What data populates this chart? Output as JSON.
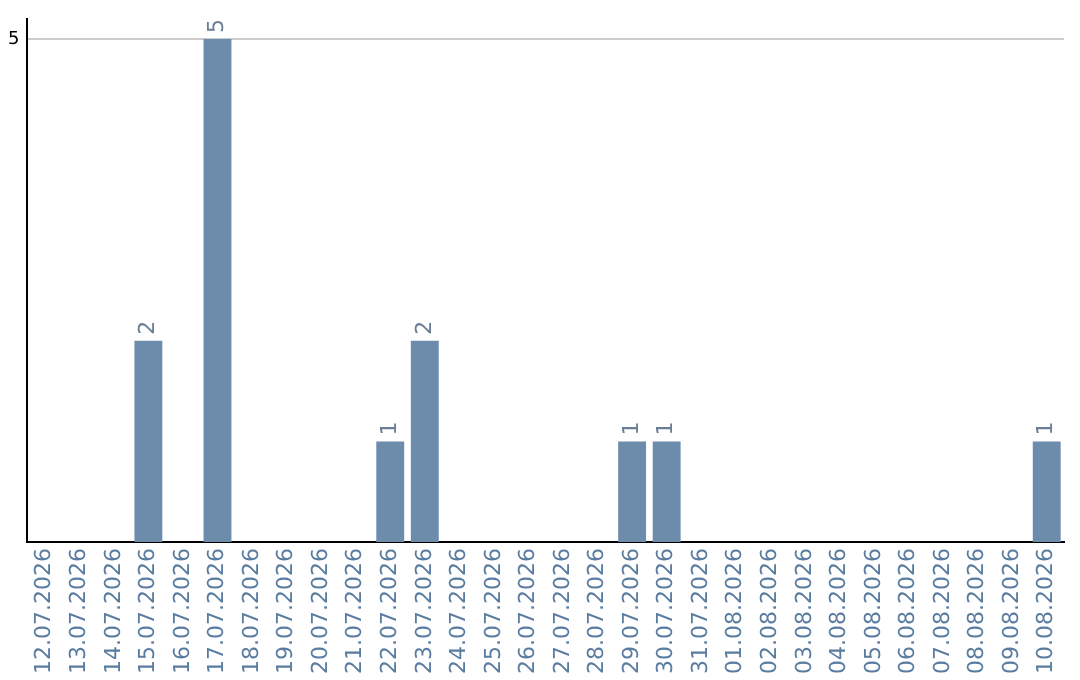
{
  "chart_data": {
    "type": "bar",
    "categories": [
      "12.07.2026",
      "13.07.2026",
      "14.07.2026",
      "15.07.2026",
      "16.07.2026",
      "17.07.2026",
      "18.07.2026",
      "19.07.2026",
      "20.07.2026",
      "21.07.2026",
      "22.07.2026",
      "23.07.2026",
      "24.07.2026",
      "25.07.2026",
      "26.07.2026",
      "27.07.2026",
      "28.07.2026",
      "29.07.2026",
      "30.07.2026",
      "31.07.2026",
      "01.08.2026",
      "02.08.2026",
      "03.08.2026",
      "04.08.2026",
      "05.08.2026",
      "06.08.2026",
      "07.08.2026",
      "08.08.2026",
      "09.08.2026",
      "10.08.2026"
    ],
    "values": [
      0,
      0,
      0,
      2,
      0,
      5,
      0,
      0,
      0,
      0,
      1,
      2,
      0,
      0,
      0,
      0,
      0,
      1,
      1,
      0,
      0,
      0,
      0,
      0,
      0,
      0,
      0,
      0,
      0,
      1
    ],
    "value_labels": [
      null,
      null,
      null,
      "2",
      null,
      "5",
      null,
      null,
      null,
      null,
      "1",
      "2",
      null,
      null,
      null,
      null,
      null,
      "1",
      "1",
      null,
      null,
      null,
      null,
      null,
      null,
      null,
      null,
      null,
      null,
      "1"
    ],
    "color": "#6d8cab",
    "ylim": [
      0,
      5.2
    ],
    "yticks": [
      5
    ],
    "grid": "y",
    "legend": false
  }
}
